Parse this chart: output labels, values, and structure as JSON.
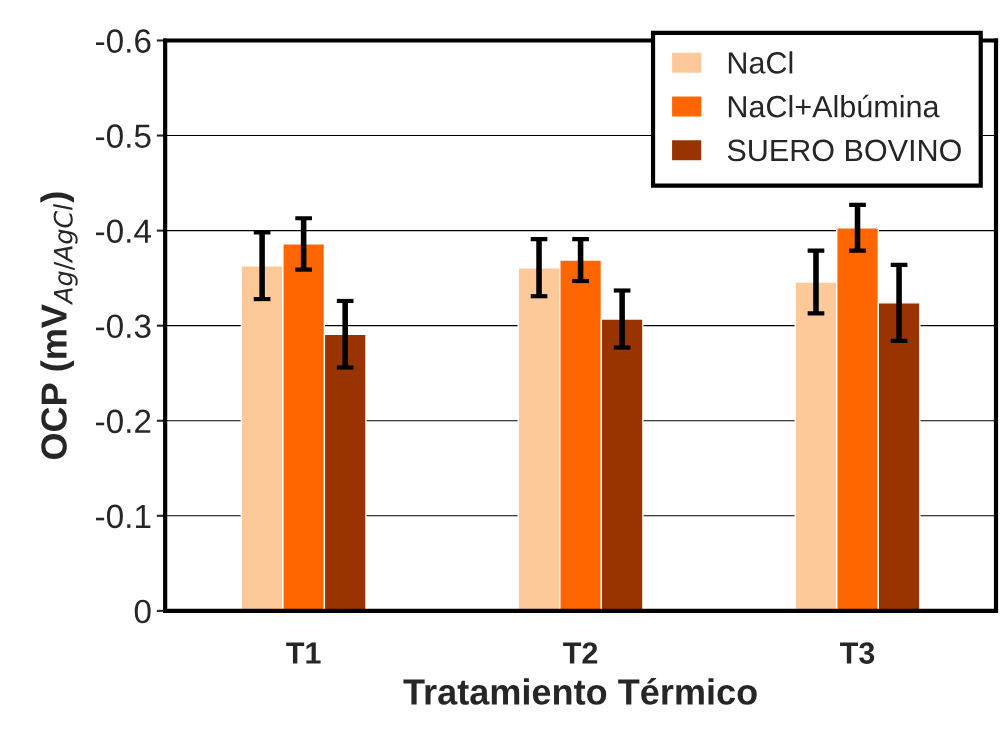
{
  "chart_data": {
    "type": "bar",
    "xlabel": "Tratamiento Térmico",
    "ylabel": "OCP (mV$_{Ag/AgCl}$)",
    "categories": [
      "T1",
      "T2",
      "T3"
    ],
    "series": [
      {
        "name": "NaCl",
        "color": "#fdc999",
        "values": [
          -0.363,
          -0.361,
          -0.346
        ],
        "errors": [
          0.035,
          0.03,
          0.033
        ]
      },
      {
        "name": "NaCl+Albúmina",
        "color": "#ff6600",
        "values": [
          -0.386,
          -0.369,
          -0.403
        ],
        "errors": [
          0.027,
          0.022,
          0.024
        ]
      },
      {
        "name": "SUERO BOVINO",
        "color": "#993300",
        "values": [
          -0.291,
          -0.307,
          -0.324
        ],
        "errors": [
          0.035,
          0.03,
          0.04
        ]
      }
    ],
    "ylim": [
      0,
      -0.6
    ],
    "yticks": [
      0,
      -0.1,
      -0.2,
      -0.3,
      -0.4,
      -0.5,
      -0.6
    ],
    "grid": "y",
    "legend": "top right"
  }
}
